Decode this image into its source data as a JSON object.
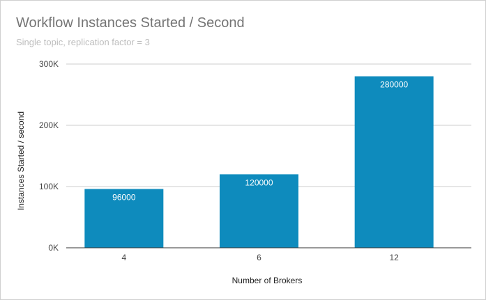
{
  "chart_data": {
    "type": "bar",
    "title": "Workflow Instances Started / Second",
    "subtitle": "Single topic, replication factor = 3",
    "xlabel": "Number of Brokers",
    "ylabel": "Instances Started / second",
    "categories": [
      "4",
      "6",
      "12"
    ],
    "values": [
      96000,
      120000,
      280000
    ],
    "data_labels": [
      "96000",
      "120000",
      "280000"
    ],
    "ylim": [
      0,
      300000
    ],
    "yticks": [
      0,
      100000,
      200000,
      300000
    ],
    "ytick_labels": [
      "0K",
      "100K",
      "200K",
      "300K"
    ],
    "grid": true,
    "legend": "none",
    "bar_color": "#0e8bbd"
  }
}
